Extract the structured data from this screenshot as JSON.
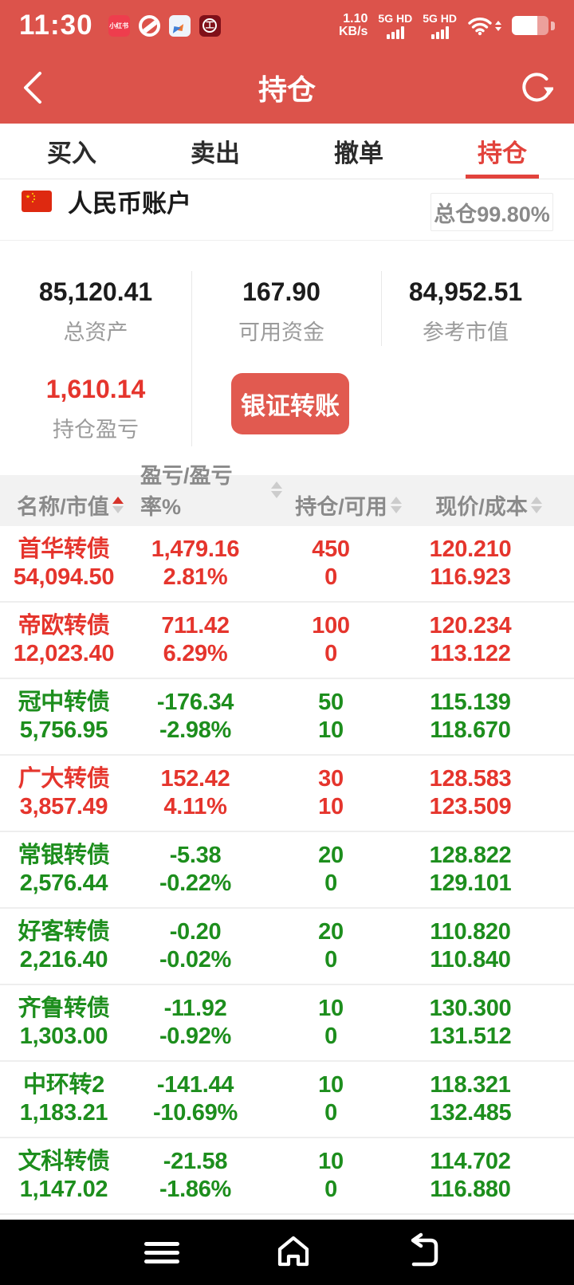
{
  "colors": {
    "bar_red": "#dc534b",
    "accent_red": "#e2433c",
    "gain_red": "#e5352d",
    "loss_green": "#1d8e1d",
    "button_red": "#e15a50"
  },
  "status_bar": {
    "time": "11:30",
    "net_speed_value": "1.10",
    "net_speed_unit": "KB/s",
    "sim1_label": "5G HD",
    "sim2_label": "5G HD",
    "app_icons": [
      {
        "name": "xiaohongshu-app-icon",
        "label": "小红书"
      },
      {
        "name": "ball-app-icon",
        "label": ""
      },
      {
        "name": "compass-app-icon",
        "label": ""
      },
      {
        "name": "icbc-app-icon",
        "label": "工"
      }
    ]
  },
  "nav": {
    "title": "持仓"
  },
  "tab_bar": {
    "tabs": [
      {
        "label": "买入",
        "active": false
      },
      {
        "label": "卖出",
        "active": false
      },
      {
        "label": "撤单",
        "active": false
      },
      {
        "label": "持仓",
        "active": true
      }
    ]
  },
  "account": {
    "name": "人民币账户",
    "position_ratio": "总仓99.80%"
  },
  "summary": {
    "total_assets": {
      "value": "85,120.41",
      "label": "总资产"
    },
    "available_funds": {
      "value": "167.90",
      "label": "可用资金"
    },
    "reference_market_value": {
      "value": "84,952.51",
      "label": "参考市值"
    },
    "position_pnl": {
      "value": "1,610.14",
      "label": "持仓盈亏"
    },
    "transfer_button": "银证转账"
  },
  "table": {
    "headers": [
      "名称/市值",
      "盈亏/盈亏率%",
      "持仓/可用",
      "现价/成本"
    ],
    "sort": {
      "active_column": 0,
      "direction": "asc"
    },
    "rows": [
      {
        "name": "首华转债",
        "market_value": "54,094.50",
        "pnl": "1,479.16",
        "pnl_pct": "2.81%",
        "position": "450",
        "available": "0",
        "price": "120.210",
        "cost": "116.923",
        "trend": "up"
      },
      {
        "name": "帝欧转债",
        "market_value": "12,023.40",
        "pnl": "711.42",
        "pnl_pct": "6.29%",
        "position": "100",
        "available": "0",
        "price": "120.234",
        "cost": "113.122",
        "trend": "up"
      },
      {
        "name": "冠中转债",
        "market_value": "5,756.95",
        "pnl": "-176.34",
        "pnl_pct": "-2.98%",
        "position": "50",
        "available": "10",
        "price": "115.139",
        "cost": "118.670",
        "trend": "down"
      },
      {
        "name": "广大转债",
        "market_value": "3,857.49",
        "pnl": "152.42",
        "pnl_pct": "4.11%",
        "position": "30",
        "available": "10",
        "price": "128.583",
        "cost": "123.509",
        "trend": "up"
      },
      {
        "name": "常银转债",
        "market_value": "2,576.44",
        "pnl": "-5.38",
        "pnl_pct": "-0.22%",
        "position": "20",
        "available": "0",
        "price": "128.822",
        "cost": "129.101",
        "trend": "down"
      },
      {
        "name": "好客转债",
        "market_value": "2,216.40",
        "pnl": "-0.20",
        "pnl_pct": "-0.02%",
        "position": "20",
        "available": "0",
        "price": "110.820",
        "cost": "110.840",
        "trend": "down"
      },
      {
        "name": "齐鲁转债",
        "market_value": "1,303.00",
        "pnl": "-11.92",
        "pnl_pct": "-0.92%",
        "position": "10",
        "available": "0",
        "price": "130.300",
        "cost": "131.512",
        "trend": "down"
      },
      {
        "name": "中环转2",
        "market_value": "1,183.21",
        "pnl": "-141.44",
        "pnl_pct": "-10.69%",
        "position": "10",
        "available": "0",
        "price": "118.321",
        "cost": "132.485",
        "trend": "down"
      },
      {
        "name": "文科转债",
        "market_value": "1,147.02",
        "pnl": "-21.58",
        "pnl_pct": "-1.86%",
        "position": "10",
        "available": "0",
        "price": "114.702",
        "cost": "116.880",
        "trend": "down"
      }
    ]
  }
}
